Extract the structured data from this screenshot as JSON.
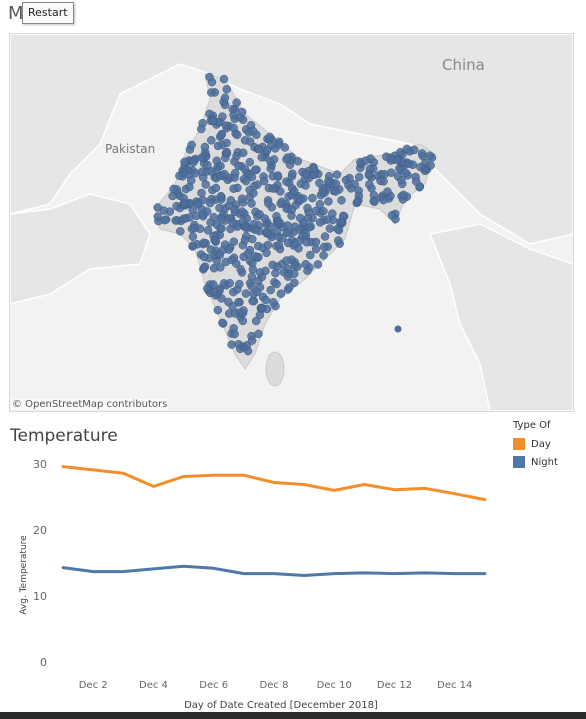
{
  "map": {
    "title": "M",
    "restart_label": "Restart",
    "labels": {
      "china": "China",
      "pakistan": "Pakistan"
    },
    "attribution": "© OpenStreetMap contributors",
    "point_color": "#4e6f9c"
  },
  "toolbar": {
    "restart_label": "Restart"
  },
  "chart": {
    "title": "Temperature"
  },
  "legend": {
    "title": "Type Of",
    "items": [
      {
        "label": "Day",
        "color": "#f28e2b"
      },
      {
        "label": "Night",
        "color": "#4e79a7"
      }
    ]
  },
  "chart_data": {
    "type": "line",
    "title": "Temperature",
    "xlabel": "Day of Date Created [December 2018]",
    "ylabel": "Avg. Temperature",
    "ylim": [
      0,
      30
    ],
    "yticks": [
      0,
      10,
      20,
      30
    ],
    "x": [
      1,
      2,
      3,
      4,
      5,
      6,
      7,
      8,
      9,
      10,
      11,
      12,
      13,
      14,
      15
    ],
    "xtick_labels": [
      {
        "x": 2,
        "label": "Dec 2"
      },
      {
        "x": 4,
        "label": "Dec 4"
      },
      {
        "x": 6,
        "label": "Dec 6"
      },
      {
        "x": 8,
        "label": "Dec 8"
      },
      {
        "x": 10,
        "label": "Dec 10"
      },
      {
        "x": 12,
        "label": "Dec 12"
      },
      {
        "x": 14,
        "label": "Dec 14"
      }
    ],
    "grid": false,
    "legend_position": "top-right",
    "series": [
      {
        "name": "Day",
        "color": "#f28e2b",
        "values": [
          29.6,
          29.1,
          28.6,
          26.6,
          28.1,
          28.3,
          28.3,
          27.2,
          26.9,
          26.0,
          26.9,
          26.1,
          26.3,
          25.5,
          24.6
        ]
      },
      {
        "name": "Night",
        "color": "#4e79a7",
        "values": [
          14.3,
          13.7,
          13.7,
          14.1,
          14.5,
          14.2,
          13.4,
          13.4,
          13.1,
          13.4,
          13.5,
          13.4,
          13.5,
          13.4,
          13.4
        ]
      }
    ]
  }
}
